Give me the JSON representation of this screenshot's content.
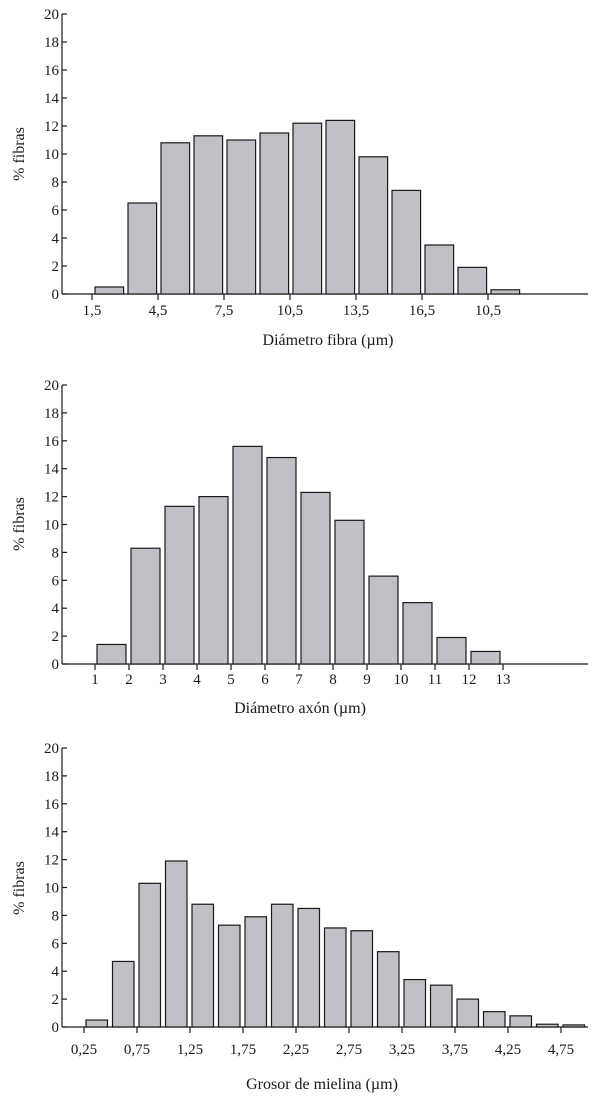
{
  "chart_data": [
    {
      "type": "bar",
      "xlabel": "Diámetro fibra (µm)",
      "ylabel": "% fibras",
      "ylim": [
        0,
        20
      ],
      "yticks": [
        "0",
        "2",
        "4",
        "6",
        "8",
        "10",
        "12",
        "14",
        "16",
        "18",
        "20"
      ],
      "xtick_labels": [
        "1,5",
        "4,5",
        "7,5",
        "10,5",
        "13,5",
        "16,5",
        "10,5"
      ],
      "values": [
        0.5,
        6.5,
        10.8,
        11.3,
        11.0,
        11.5,
        12.2,
        12.4,
        9.8,
        7.4,
        3.5,
        1.9,
        0.3
      ],
      "grid": false,
      "legend": "none"
    },
    {
      "type": "bar",
      "xlabel": "Diámetro axón (µm)",
      "ylabel": "% fibras",
      "ylim": [
        0,
        20
      ],
      "yticks": [
        "0",
        "2",
        "4",
        "6",
        "8",
        "10",
        "12",
        "14",
        "16",
        "18",
        "20"
      ],
      "xtick_labels": [
        "1",
        "2",
        "3",
        "4",
        "5",
        "6",
        "7",
        "8",
        "9",
        "10",
        "11",
        "12",
        "13"
      ],
      "values": [
        1.4,
        8.3,
        11.3,
        12.0,
        15.6,
        14.8,
        12.3,
        10.3,
        6.3,
        4.4,
        1.9,
        0.9
      ],
      "grid": false,
      "legend": "none"
    },
    {
      "type": "bar",
      "xlabel": "Grosor de mielina (µm)",
      "ylabel": "% fibras",
      "ylim": [
        0,
        20
      ],
      "yticks": [
        "0",
        "2",
        "4",
        "6",
        "8",
        "10",
        "12",
        "14",
        "16",
        "18",
        "20"
      ],
      "xtick_labels": [
        "0,25",
        "0,75",
        "1,25",
        "1,75",
        "2,25",
        "2,75",
        "3,25",
        "3,75",
        "4,25",
        "4,75"
      ],
      "values": [
        0.5,
        4.7,
        10.3,
        11.9,
        8.8,
        7.3,
        7.9,
        8.8,
        8.5,
        7.1,
        6.9,
        5.4,
        3.4,
        3.0,
        2.0,
        1.1,
        0.8,
        0.2,
        0.15
      ],
      "grid": false,
      "legend": "none"
    }
  ]
}
